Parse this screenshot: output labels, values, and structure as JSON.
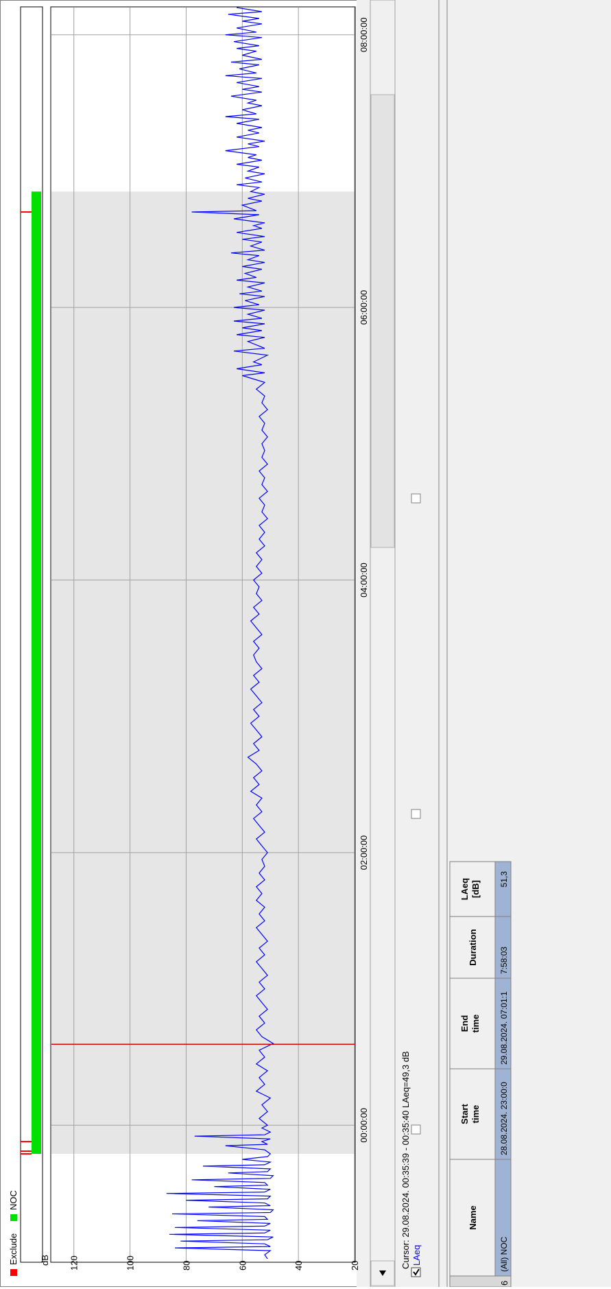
{
  "legend": {
    "items": [
      {
        "label": "Exclude",
        "color": "#ff0000"
      },
      {
        "label": "NOC",
        "color": "#00e000"
      }
    ]
  },
  "cursor_readout": "Cursor: 29.08.2024. 00:35:39 - 00:35:40  LAeq=49,3 dB",
  "series_checkbox_label": "LAeq",
  "table": {
    "headers": [
      "Name",
      "Start time",
      "End time",
      "Duration",
      "LAeq [dB]"
    ],
    "rows": [
      {
        "index": "6",
        "cells": [
          "(All) NOC",
          "28.08.2024. 23:00:0",
          "29.08.2024. 07:01:1",
          "7:58:03",
          "51,3"
        ]
      }
    ]
  },
  "colors": {
    "trace": "#0000ff",
    "cursor": "#dd0000",
    "noc_band": "#00e000",
    "exclude_marker": "#ff0000",
    "shaded_period": "#e6e6e6"
  },
  "chart_data": {
    "type": "line",
    "title": "",
    "xlabel": "",
    "ylabel": "dB",
    "ylim": [
      20,
      128
    ],
    "yticks": [
      20,
      40,
      60,
      80,
      100,
      120
    ],
    "x_ticks": [
      "00:00:00",
      "02:00:00",
      "04:00:00",
      "06:00:00",
      "08:00:00"
    ],
    "x_range_hours": [
      -1.0,
      8.2
    ],
    "cursor_time_hours": 0.594,
    "noc_period_hours": [
      -0.21,
      6.85
    ],
    "exclude_markers_hours": [
      -0.21,
      -0.19,
      -0.12,
      6.7
    ],
    "grid": true,
    "series": [
      {
        "name": "LAeq",
        "points": [
          [
            -0.98,
            51
          ],
          [
            -0.95,
            52
          ],
          [
            -0.92,
            50
          ],
          [
            -0.9,
            84
          ],
          [
            -0.89,
            50
          ],
          [
            -0.87,
            52
          ],
          [
            -0.85,
            82
          ],
          [
            -0.84,
            51
          ],
          [
            -0.82,
            49
          ],
          [
            -0.8,
            86
          ],
          [
            -0.79,
            52
          ],
          [
            -0.77,
            50
          ],
          [
            -0.75,
            84
          ],
          [
            -0.74,
            52
          ],
          [
            -0.72,
            50
          ],
          [
            -0.7,
            76
          ],
          [
            -0.69,
            51
          ],
          [
            -0.67,
            52
          ],
          [
            -0.65,
            85
          ],
          [
            -0.64,
            50
          ],
          [
            -0.62,
            49
          ],
          [
            -0.6,
            72
          ],
          [
            -0.59,
            50
          ],
          [
            -0.57,
            52
          ],
          [
            -0.55,
            80
          ],
          [
            -0.54,
            51
          ],
          [
            -0.52,
            50
          ],
          [
            -0.5,
            87
          ],
          [
            -0.49,
            52
          ],
          [
            -0.47,
            50
          ],
          [
            -0.45,
            70
          ],
          [
            -0.44,
            51
          ],
          [
            -0.42,
            52
          ],
          [
            -0.4,
            78
          ],
          [
            -0.39,
            50
          ],
          [
            -0.37,
            49
          ],
          [
            -0.35,
            65
          ],
          [
            -0.34,
            51
          ],
          [
            -0.32,
            50
          ],
          [
            -0.3,
            74
          ],
          [
            -0.29,
            52
          ],
          [
            -0.27,
            50
          ],
          [
            -0.25,
            60
          ],
          [
            -0.23,
            51
          ],
          [
            -0.21,
            50
          ],
          [
            -0.18,
            52
          ],
          [
            -0.15,
            66
          ],
          [
            -0.14,
            51
          ],
          [
            -0.12,
            53
          ],
          [
            -0.1,
            50
          ],
          [
            -0.08,
            77
          ],
          [
            -0.07,
            52
          ],
          [
            -0.05,
            50
          ],
          [
            -0.02,
            53
          ],
          [
            0.0,
            51
          ],
          [
            0.05,
            54
          ],
          [
            0.1,
            51
          ],
          [
            0.15,
            53
          ],
          [
            0.2,
            50
          ],
          [
            0.25,
            55
          ],
          [
            0.3,
            52
          ],
          [
            0.35,
            54
          ],
          [
            0.4,
            51
          ],
          [
            0.45,
            55
          ],
          [
            0.5,
            52
          ],
          [
            0.55,
            54
          ],
          [
            0.6,
            49
          ],
          [
            0.65,
            53
          ],
          [
            0.7,
            55
          ],
          [
            0.75,
            52
          ],
          [
            0.8,
            54
          ],
          [
            0.85,
            51
          ],
          [
            0.9,
            53
          ],
          [
            0.95,
            55
          ],
          [
            1.0,
            52
          ],
          [
            1.05,
            54
          ],
          [
            1.1,
            51
          ],
          [
            1.15,
            53
          ],
          [
            1.2,
            55
          ],
          [
            1.25,
            52
          ],
          [
            1.3,
            54
          ],
          [
            1.35,
            51
          ],
          [
            1.4,
            53
          ],
          [
            1.45,
            55
          ],
          [
            1.5,
            52
          ],
          [
            1.55,
            54
          ],
          [
            1.6,
            52
          ],
          [
            1.65,
            55
          ],
          [
            1.7,
            53
          ],
          [
            1.75,
            55
          ],
          [
            1.8,
            52
          ],
          [
            1.85,
            54
          ],
          [
            1.9,
            52
          ],
          [
            1.95,
            53
          ],
          [
            2.0,
            51
          ],
          [
            2.05,
            53
          ],
          [
            2.1,
            55
          ],
          [
            2.15,
            52
          ],
          [
            2.2,
            54
          ],
          [
            2.25,
            56
          ],
          [
            2.3,
            53
          ],
          [
            2.35,
            55
          ],
          [
            2.4,
            53
          ],
          [
            2.45,
            57
          ],
          [
            2.5,
            54
          ],
          [
            2.55,
            56
          ],
          [
            2.6,
            53
          ],
          [
            2.65,
            55
          ],
          [
            2.7,
            58
          ],
          [
            2.75,
            54
          ],
          [
            2.8,
            56
          ],
          [
            2.85,
            53
          ],
          [
            2.9,
            55
          ],
          [
            2.95,
            57
          ],
          [
            3.0,
            54
          ],
          [
            3.05,
            56
          ],
          [
            3.1,
            53
          ],
          [
            3.15,
            55
          ],
          [
            3.2,
            57
          ],
          [
            3.25,
            54
          ],
          [
            3.3,
            56
          ],
          [
            3.35,
            53
          ],
          [
            3.4,
            55
          ],
          [
            3.45,
            56
          ],
          [
            3.5,
            54
          ],
          [
            3.55,
            56
          ],
          [
            3.6,
            53
          ],
          [
            3.65,
            55
          ],
          [
            3.7,
            57
          ],
          [
            3.75,
            54
          ],
          [
            3.8,
            56
          ],
          [
            3.85,
            53
          ],
          [
            3.9,
            55
          ],
          [
            3.95,
            54
          ],
          [
            4.0,
            56
          ],
          [
            4.05,
            53
          ],
          [
            4.1,
            55
          ],
          [
            4.15,
            53
          ],
          [
            4.2,
            55
          ],
          [
            4.25,
            52
          ],
          [
            4.3,
            54
          ],
          [
            4.35,
            52
          ],
          [
            4.4,
            54
          ],
          [
            4.45,
            51
          ],
          [
            4.5,
            53
          ],
          [
            4.55,
            52
          ],
          [
            4.6,
            54
          ],
          [
            4.65,
            51
          ],
          [
            4.7,
            53
          ],
          [
            4.75,
            52
          ],
          [
            4.8,
            54
          ],
          [
            4.85,
            51
          ],
          [
            4.9,
            53
          ],
          [
            4.95,
            52
          ],
          [
            5.0,
            53
          ],
          [
            5.05,
            51
          ],
          [
            5.1,
            53
          ],
          [
            5.15,
            52
          ],
          [
            5.2,
            54
          ],
          [
            5.25,
            51
          ],
          [
            5.3,
            53
          ],
          [
            5.35,
            52
          ],
          [
            5.4,
            55
          ],
          [
            5.45,
            52
          ],
          [
            5.5,
            60
          ],
          [
            5.52,
            52
          ],
          [
            5.55,
            62
          ],
          [
            5.58,
            53
          ],
          [
            5.6,
            56
          ],
          [
            5.65,
            51
          ],
          [
            5.68,
            63
          ],
          [
            5.7,
            52
          ],
          [
            5.75,
            58
          ],
          [
            5.78,
            52
          ],
          [
            5.8,
            62
          ],
          [
            5.83,
            53
          ],
          [
            5.85,
            60
          ],
          [
            5.88,
            52
          ],
          [
            5.9,
            63
          ],
          [
            5.92,
            53
          ],
          [
            5.95,
            58
          ],
          [
            5.98,
            52
          ],
          [
            6.0,
            63
          ],
          [
            6.02,
            54
          ],
          [
            6.05,
            59
          ],
          [
            6.08,
            52
          ],
          [
            6.1,
            61
          ],
          [
            6.12,
            53
          ],
          [
            6.15,
            58
          ],
          [
            6.18,
            52
          ],
          [
            6.2,
            62
          ],
          [
            6.22,
            55
          ],
          [
            6.25,
            59
          ],
          [
            6.28,
            53
          ],
          [
            6.3,
            60
          ],
          [
            6.33,
            52
          ],
          [
            6.35,
            58
          ],
          [
            6.38,
            54
          ],
          [
            6.4,
            64
          ],
          [
            6.42,
            52
          ],
          [
            6.45,
            57
          ],
          [
            6.48,
            53
          ],
          [
            6.5,
            60
          ],
          [
            6.52,
            52
          ],
          [
            6.55,
            62
          ],
          [
            6.58,
            53
          ],
          [
            6.6,
            56
          ],
          [
            6.62,
            52
          ],
          [
            6.65,
            63
          ],
          [
            6.68,
            54
          ],
          [
            6.7,
            78
          ],
          [
            6.71,
            55
          ],
          [
            6.75,
            60
          ],
          [
            6.78,
            53
          ],
          [
            6.8,
            58
          ],
          [
            6.83,
            52
          ],
          [
            6.85,
            57
          ],
          [
            6.88,
            54
          ],
          [
            6.9,
            62
          ],
          [
            6.92,
            53
          ],
          [
            6.95,
            59
          ],
          [
            6.98,
            52
          ],
          [
            7.0,
            58
          ],
          [
            7.03,
            54
          ],
          [
            7.05,
            62
          ],
          [
            7.08,
            53
          ],
          [
            7.1,
            58
          ],
          [
            7.12,
            55
          ],
          [
            7.15,
            66
          ],
          [
            7.18,
            54
          ],
          [
            7.2,
            58
          ],
          [
            7.22,
            52
          ],
          [
            7.25,
            62
          ],
          [
            7.28,
            54
          ],
          [
            7.3,
            58
          ],
          [
            7.32,
            53
          ],
          [
            7.35,
            62
          ],
          [
            7.38,
            54
          ],
          [
            7.4,
            66
          ],
          [
            7.42,
            55
          ],
          [
            7.45,
            60
          ],
          [
            7.48,
            53
          ],
          [
            7.5,
            58
          ],
          [
            7.52,
            55
          ],
          [
            7.55,
            64
          ],
          [
            7.58,
            53
          ],
          [
            7.6,
            60
          ],
          [
            7.62,
            54
          ],
          [
            7.65,
            62
          ],
          [
            7.68,
            53
          ],
          [
            7.7,
            66
          ],
          [
            7.72,
            55
          ],
          [
            7.75,
            61
          ],
          [
            7.78,
            54
          ],
          [
            7.8,
            64
          ],
          [
            7.82,
            53
          ],
          [
            7.85,
            60
          ],
          [
            7.88,
            55
          ],
          [
            7.9,
            62
          ],
          [
            7.92,
            54
          ],
          [
            7.95,
            63
          ],
          [
            7.98,
            53
          ],
          [
            8.0,
            66
          ],
          [
            8.02,
            55
          ],
          [
            8.05,
            62
          ],
          [
            8.08,
            53
          ],
          [
            8.1,
            60
          ],
          [
            8.12,
            54
          ],
          [
            8.15,
            65
          ],
          [
            8.17,
            53
          ],
          [
            8.2,
            62
          ]
        ]
      }
    ]
  }
}
